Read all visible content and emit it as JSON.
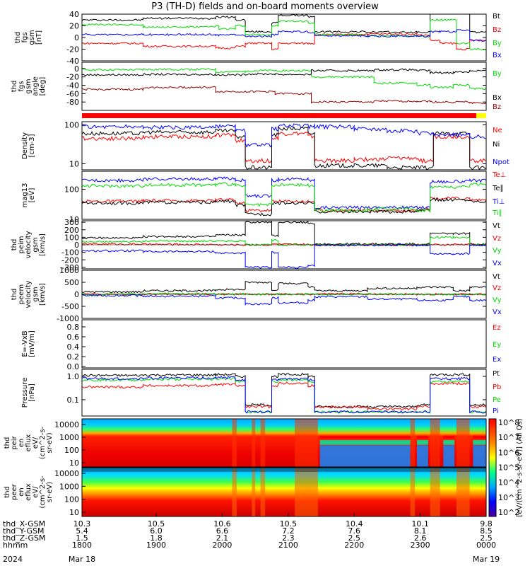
{
  "title": "P3 (TH-D) fields and on-board moments overview",
  "colors": {
    "black": "#000000",
    "red": "#ff0000",
    "green": "#00dd00",
    "blue": "#0000ff",
    "darkred": "#990000",
    "yellow": "#ffff00"
  },
  "chart_data": [
    {
      "id": "fgs-gsm",
      "type": "line",
      "ylabel": [
        "thd",
        "fgs",
        "gsm",
        "[nT]"
      ],
      "ylim": [
        -40,
        40
      ],
      "yticks": [
        40,
        20,
        0,
        -20,
        -40
      ],
      "legend": [
        {
          "name": "Bt",
          "color": "black"
        },
        {
          "name": "Bz",
          "color": "red"
        },
        {
          "name": "By",
          "color": "green"
        },
        {
          "name": "Bx",
          "color": "blue"
        }
      ],
      "x_hours": [
        17.875,
        18.8,
        19.9,
        19.95,
        20.2,
        20.35,
        20.75,
        20.85,
        21.3,
        21.4,
        22.1,
        22.2,
        22.95,
        23.15,
        23.3,
        23.55,
        23.75,
        24.0
      ],
      "series": [
        {
          "name": "Bt",
          "color": "black",
          "values": [
            30,
            33,
            35,
            35,
            30,
            10,
            25,
            38,
            35,
            10,
            10,
            9,
            9,
            45,
            45,
            45,
            9,
            12
          ]
        },
        {
          "name": "Bz",
          "color": "red",
          "values": [
            -10,
            -15,
            -18,
            -18,
            -15,
            -10,
            -20,
            -10,
            -10,
            5,
            6,
            6,
            4,
            -5,
            -10,
            -20,
            -5,
            -15
          ]
        },
        {
          "name": "By",
          "color": "green",
          "values": [
            22,
            18,
            20,
            15,
            20,
            5,
            20,
            28,
            25,
            5,
            3,
            3,
            2,
            30,
            30,
            -10,
            -20,
            -20
          ]
        },
        {
          "name": "Bx",
          "color": "blue",
          "values": [
            5,
            5,
            4,
            5,
            5,
            2,
            5,
            10,
            8,
            3,
            2,
            2,
            2,
            10,
            10,
            12,
            -5,
            -10
          ]
        }
      ]
    },
    {
      "id": "fgs-gse-angles",
      "type": "line",
      "ylabel": [
        "thd",
        "fgs",
        "gsm",
        "angle",
        "[deg]"
      ],
      "ylim": [
        -100,
        15
      ],
      "yticks": [
        0,
        -20,
        -40,
        -60,
        -80
      ],
      "legend": [
        {
          "name": "By",
          "color": "green"
        },
        {
          "name": "Bx",
          "color": "black"
        },
        {
          "name": "Bz",
          "color": "darkred"
        }
      ],
      "x_hours": [
        17.875,
        18.8,
        19.9,
        20.35,
        20.8,
        21.35,
        22.3,
        22.95,
        23.15,
        23.5,
        23.75,
        24.0
      ],
      "series": [
        {
          "name": "By",
          "color": "green",
          "values": [
            -3,
            -2,
            -8,
            -5,
            -5,
            -20,
            -35,
            -40,
            -45,
            -40,
            -48,
            -45
          ]
        },
        {
          "name": "Bx",
          "color": "black",
          "values": [
            -15,
            -14,
            -15,
            -13,
            -14,
            -5,
            -3,
            -5,
            -10,
            -8,
            -5,
            -3
          ]
        },
        {
          "name": "Bz",
          "color": "darkred",
          "values": [
            -50,
            -45,
            -55,
            -55,
            -60,
            -80,
            -78,
            -78,
            -80,
            -80,
            -82,
            -85
          ]
        }
      ]
    },
    {
      "id": "density",
      "type": "line",
      "log": true,
      "ylabel": [
        "Density",
        "[cm-3]"
      ],
      "ylim": [
        7,
        120
      ],
      "yticks": [
        100,
        10
      ],
      "legend": [
        {
          "name": "Ne",
          "color": "red"
        },
        {
          "name": "Ni",
          "color": "black"
        },
        {
          "name": "Npot",
          "color": "blue"
        }
      ],
      "x_hours": [
        17.875,
        18.8,
        19.9,
        20.2,
        20.35,
        20.75,
        20.85,
        21.3,
        21.4,
        22.0,
        22.5,
        22.95,
        23.2,
        23.5,
        23.75,
        24.0
      ],
      "series": [
        {
          "name": "Ne",
          "color": "red",
          "values": [
            45,
            50,
            55,
            40,
            12,
            45,
            60,
            50,
            12,
            13,
            14,
            12,
            50,
            50,
            12,
            10
          ]
        },
        {
          "name": "Ni",
          "color": "black",
          "values": [
            60,
            65,
            70,
            50,
            8,
            55,
            80,
            60,
            9,
            9,
            8,
            8,
            60,
            60,
            8,
            8
          ]
        },
        {
          "name": "Npot",
          "color": "blue",
          "values": [
            90,
            85,
            90,
            70,
            30,
            80,
            95,
            90,
            90,
            80,
            70,
            60,
            55,
            55,
            50,
            50
          ]
        }
      ]
    },
    {
      "id": "temperature",
      "type": "line",
      "log": true,
      "ylabel": [
        "mag13",
        "[eV]"
      ],
      "ylim": [
        10,
        400
      ],
      "yticks": [
        100,
        10
      ],
      "legend": [
        {
          "name": "Te⊥",
          "color": "red"
        },
        {
          "name": "Te∥",
          "color": "black"
        },
        {
          "name": "Ti⊥",
          "color": "blue"
        },
        {
          "name": "Ti∥",
          "color": "green"
        }
      ],
      "x_hours": [
        17.875,
        18.8,
        19.9,
        20.2,
        20.35,
        20.75,
        20.85,
        21.3,
        21.4,
        22.2,
        22.95,
        23.15,
        23.4,
        23.75,
        24.0
      ],
      "series": [
        {
          "name": "Te⊥",
          "color": "red",
          "values": [
            40,
            42,
            45,
            35,
            20,
            40,
            40,
            40,
            20,
            20,
            22,
            50,
            50,
            45,
            50
          ]
        },
        {
          "name": "Te∥",
          "color": "black",
          "values": [
            35,
            37,
            40,
            30,
            15,
            35,
            35,
            35,
            18,
            18,
            20,
            45,
            45,
            40,
            45
          ]
        },
        {
          "name": "Ti⊥",
          "color": "blue",
          "values": [
            200,
            220,
            230,
            200,
            60,
            200,
            220,
            200,
            25,
            25,
            25,
            180,
            180,
            200,
            280
          ]
        },
        {
          "name": "Ti∥",
          "color": "green",
          "values": [
            130,
            140,
            150,
            130,
            30,
            130,
            140,
            130,
            20,
            22,
            20,
            120,
            120,
            150,
            200
          ]
        }
      ]
    },
    {
      "id": "peim-velocity",
      "type": "line",
      "ylabel": [
        "thd",
        "peim",
        "velocity",
        "gsm",
        "[km/s]"
      ],
      "ylim": [
        -320,
        320
      ],
      "yticks": [
        300,
        200,
        100,
        0,
        -100,
        -200,
        -300
      ],
      "legend": [
        {
          "name": "Vt",
          "color": "black"
        },
        {
          "name": "Vz",
          "color": "red"
        },
        {
          "name": "Vy",
          "color": "green"
        },
        {
          "name": "Vx",
          "color": "blue"
        }
      ],
      "x_hours": [
        17.875,
        18.8,
        19.9,
        20.35,
        20.75,
        20.85,
        21.3,
        21.4,
        22.2,
        22.95,
        23.15,
        23.5,
        23.75,
        24.0
      ],
      "series": [
        {
          "name": "Vt",
          "color": "black",
          "values": [
            90,
            110,
            130,
            300,
            120,
            300,
            280,
            10,
            10,
            10,
            150,
            150,
            10,
            10
          ]
        },
        {
          "name": "Vz",
          "color": "red",
          "values": [
            10,
            5,
            0,
            0,
            10,
            5,
            0,
            0,
            0,
            0,
            0,
            5,
            0,
            0
          ]
        },
        {
          "name": "Vy",
          "color": "green",
          "values": [
            40,
            50,
            50,
            0,
            60,
            0,
            0,
            0,
            0,
            0,
            100,
            100,
            0,
            0
          ]
        },
        {
          "name": "Vx",
          "color": "blue",
          "values": [
            -80,
            -90,
            -110,
            -300,
            -100,
            -300,
            -280,
            -5,
            -5,
            -5,
            -120,
            -120,
            -5,
            -5
          ]
        }
      ]
    },
    {
      "id": "peem-velocity",
      "type": "line",
      "ylabel": [
        "thd",
        "peem",
        "velocity",
        "gsm",
        "[km/s]"
      ],
      "ylim": [
        -1000,
        1000
      ],
      "yticks": [
        1000,
        500,
        0,
        -500,
        -1000
      ],
      "legend": [
        {
          "name": "Vt",
          "color": "black"
        },
        {
          "name": "Vz",
          "color": "red"
        },
        {
          "name": "Vy",
          "color": "green"
        },
        {
          "name": "Vx",
          "color": "blue"
        }
      ],
      "x_hours": [
        17.875,
        18.8,
        19.9,
        20.35,
        20.75,
        20.85,
        21.3,
        21.4,
        22.2,
        22.95,
        23.15,
        23.5,
        23.75,
        24.0
      ],
      "series": [
        {
          "name": "Vt",
          "color": "black",
          "values": [
            100,
            150,
            200,
            500,
            200,
            450,
            300,
            150,
            250,
            300,
            300,
            150,
            300,
            300
          ]
        },
        {
          "name": "Vz",
          "color": "red",
          "values": [
            0,
            10,
            0,
            0,
            0,
            0,
            0,
            20,
            10,
            0,
            0,
            0,
            0,
            0
          ]
        },
        {
          "name": "Vy",
          "color": "green",
          "values": [
            0,
            20,
            10,
            0,
            0,
            0,
            0,
            0,
            10,
            0,
            0,
            0,
            0,
            0
          ]
        },
        {
          "name": "Vx",
          "color": "blue",
          "values": [
            -50,
            -80,
            -150,
            -400,
            -150,
            -350,
            -250,
            -100,
            -200,
            -250,
            -250,
            -100,
            -250,
            -250
          ]
        }
      ]
    },
    {
      "id": "e-field",
      "type": "line",
      "ylabel": [
        "E=-VxB",
        "[mV/m]"
      ],
      "yticks": [
        0.8,
        0.6,
        0.4,
        0.2,
        0.0
      ],
      "legend": [
        {
          "name": "Ez",
          "color": "red"
        },
        {
          "name": "Ey",
          "color": "green"
        },
        {
          "name": "Ex",
          "color": "blue"
        }
      ],
      "series": []
    },
    {
      "id": "pressure",
      "type": "line",
      "log": true,
      "ylabel": [
        "Pressure",
        "[nPa]"
      ],
      "ylim": [
        0.02,
        2
      ],
      "yticks": [
        1.0,
        0.1
      ],
      "legend": [
        {
          "name": "Pt",
          "color": "black"
        },
        {
          "name": "Pb",
          "color": "red"
        },
        {
          "name": "Pe",
          "color": "green"
        },
        {
          "name": "Pi",
          "color": "blue"
        }
      ],
      "x_hours": [
        17.875,
        18.8,
        19.9,
        20.2,
        20.35,
        20.75,
        20.85,
        21.3,
        21.4,
        22.2,
        22.95,
        23.15,
        23.5,
        23.75,
        24.0
      ],
      "series": [
        {
          "name": "Pt",
          "color": "black",
          "values": [
            1.1,
            1.15,
            1.2,
            1.0,
            0.06,
            1.0,
            1.2,
            1.0,
            0.05,
            0.05,
            0.06,
            1.2,
            1.2,
            0.06,
            0.8
          ]
        },
        {
          "name": "Pb",
          "color": "red",
          "values": [
            0.35,
            0.4,
            0.45,
            0.4,
            0.05,
            0.4,
            0.5,
            0.4,
            0.05,
            0.04,
            0.05,
            0.5,
            0.5,
            0.05,
            0.3
          ]
        },
        {
          "name": "Pe",
          "color": "green",
          "values": [
            0.7,
            0.75,
            0.8,
            0.6,
            0.03,
            0.6,
            0.7,
            0.6,
            0.03,
            0.03,
            0.03,
            0.6,
            0.6,
            0.03,
            0.5
          ]
        },
        {
          "name": "Pi",
          "color": "blue",
          "values": [
            0.8,
            0.85,
            0.9,
            0.7,
            0.03,
            0.7,
            0.8,
            0.7,
            0.03,
            0.03,
            0.03,
            0.8,
            0.8,
            0.03,
            0.6
          ]
        }
      ]
    },
    {
      "id": "peir-eflux",
      "type": "heatmap",
      "ylabel": [
        "thd",
        "peir",
        "en",
        "eflux",
        "eV/",
        "(cm^2-s-",
        "sr-eV)"
      ],
      "yticks": [
        "10000",
        "1000",
        "100",
        "10"
      ]
    },
    {
      "id": "peer-eflux",
      "type": "heatmap",
      "ylabel": [
        "thd",
        "peer",
        "en",
        "eflux",
        "eV/",
        "(cm^2-s-",
        "sr-eV)"
      ],
      "yticks": [
        "10000",
        "1000",
        "100",
        "10"
      ]
    }
  ],
  "colorbar": {
    "label": "[eV/(cm^2-s-sr-eV)] (All Qs)",
    "ticks": [
      "10^8",
      "10^7",
      "10^6",
      "10^5",
      "10^4",
      "10^3",
      "10^2"
    ]
  },
  "status_bar": {
    "main_color": "red",
    "end_color": "yellow",
    "end_start_hour": 23.85
  },
  "x_axis": {
    "range_hours": [
      17.875,
      24.0
    ],
    "tick_hours": [
      17.875,
      19.0,
      20.0,
      21.0,
      22.0,
      23.0,
      24.0
    ],
    "rows": [
      {
        "label": "thd_X-GSM",
        "values": [
          "10.3",
          "10.5",
          "10.6",
          "10.5",
          "10.4",
          "10.1",
          "9.8"
        ]
      },
      {
        "label": "thd_Y-GSM",
        "values": [
          "5.4",
          "6.0",
          "6.6",
          "7.2",
          "7.6",
          "8.1",
          "8.5"
        ]
      },
      {
        "label": "thd_Z-GSM",
        "values": [
          "1.5",
          "1.8",
          "2.1",
          "2.3",
          "2.5",
          "2.6",
          "2.5"
        ]
      },
      {
        "label": "hhmm",
        "values": [
          "1800",
          "1900",
          "2000",
          "2100",
          "2200",
          "2300",
          "0000"
        ]
      }
    ],
    "dates": [
      {
        "text": "2024",
        "col": -1
      },
      {
        "text": "Mar 18",
        "col": 0
      },
      {
        "text": "Mar 19",
        "col": 6
      }
    ]
  }
}
